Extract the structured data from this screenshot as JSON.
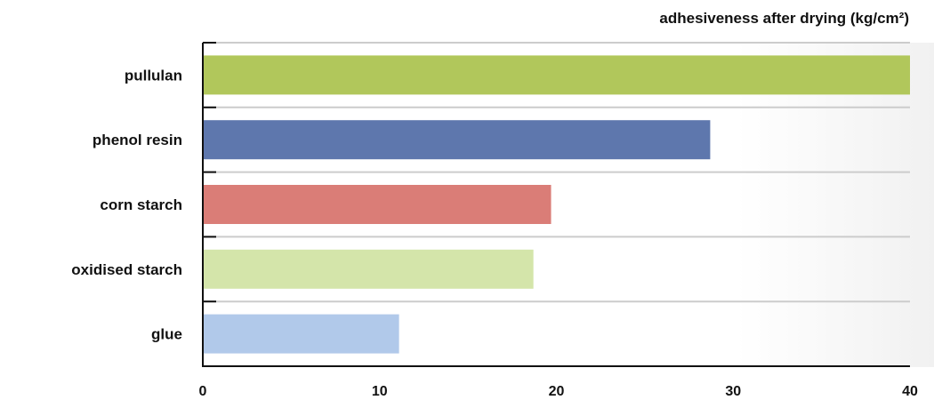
{
  "chart_data": {
    "type": "bar",
    "orientation": "horizontal",
    "title": "adhesiveness after drying (kg/cm²)",
    "categories": [
      "pullulan",
      "phenol resin",
      "corn starch",
      "oxidised starch",
      "glue"
    ],
    "values": [
      40,
      28.7,
      19.7,
      18.7,
      11.1
    ],
    "colors": [
      "#b1c75b",
      "#5e77ad",
      "#da7d77",
      "#d4e5aa",
      "#b1c9ea"
    ],
    "xlim": [
      0,
      40
    ],
    "xticks": [
      "0",
      "10",
      "20",
      "30",
      "40"
    ],
    "grid": true
  }
}
